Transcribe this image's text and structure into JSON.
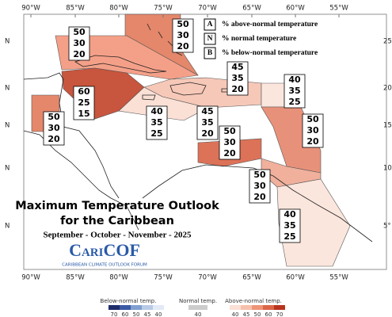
{
  "map": {
    "lon_labels": [
      "90°W",
      "85°W",
      "80°W",
      "75°W",
      "70°W",
      "65°W",
      "60°W",
      "55°W"
    ],
    "lat_labels_left": [
      "N",
      "N",
      "N",
      "N",
      "N"
    ],
    "lat_labels_right": [
      "25",
      "20",
      "15",
      "10",
      "5°"
    ],
    "regions": [
      {
        "above": 50,
        "normal": 30,
        "below": 20
      },
      {
        "above": 50,
        "normal": 30,
        "below": 20
      },
      {
        "above": 45,
        "normal": 35,
        "below": 20
      },
      {
        "above": 40,
        "normal": 35,
        "below": 25
      },
      {
        "above": 60,
        "normal": 25,
        "below": 15
      },
      {
        "above": 50,
        "normal": 30,
        "below": 20
      },
      {
        "above": 40,
        "normal": 35,
        "below": 25
      },
      {
        "above": 45,
        "normal": 35,
        "below": 20
      },
      {
        "above": 50,
        "normal": 30,
        "below": 20
      },
      {
        "above": 50,
        "normal": 30,
        "below": 20
      },
      {
        "above": 50,
        "normal": 30,
        "below": 20
      },
      {
        "above": 40,
        "normal": 35,
        "below": 25
      }
    ]
  },
  "key": [
    {
      "letter": "A",
      "text": "% above-normal temperature"
    },
    {
      "letter": "N",
      "text": "% normal temperature"
    },
    {
      "letter": "B",
      "text": "% below-normal temperature"
    }
  ],
  "title": [
    "Maximum Temperature Outlook",
    "for the Caribbean"
  ],
  "subtitle": "September - October - November - 2025",
  "logo": {
    "name": "CariCOF",
    "tagline": "CARIBBEAN CLIMATE OUTLOOK FORUM"
  },
  "colorbar": {
    "below": {
      "label": "Below-normal temp.",
      "ticks": [
        70,
        60,
        50,
        45,
        40
      ]
    },
    "normal": {
      "label": "Normal temp.",
      "ticks": [
        40
      ]
    },
    "above": {
      "label": "Above-normal temp.",
      "ticks": [
        40,
        45,
        50,
        60,
        70
      ]
    }
  }
}
